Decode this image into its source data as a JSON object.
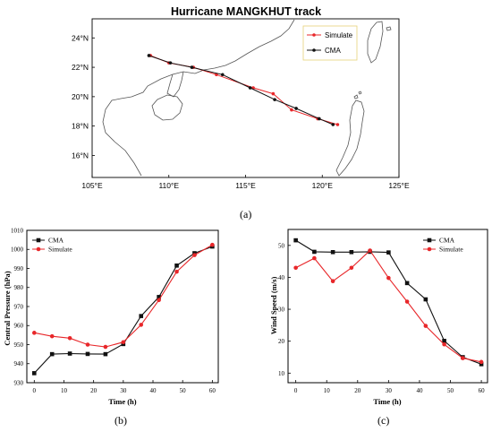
{
  "panels": {
    "a": "(a)",
    "b": "(b)",
    "c": "(c)"
  },
  "colors": {
    "cma": "#111111",
    "simulate": "#e8272a",
    "legend_border": "#e6d278",
    "coast": "#555555"
  },
  "chart_data": [
    {
      "type": "line",
      "title": "Hurricane MANGKHUT track",
      "xlabel": "",
      "ylabel": "",
      "xlim": [
        105,
        125
      ],
      "ylim": [
        14.5,
        25.3
      ],
      "x_ticks": [
        105,
        110,
        115,
        120,
        125
      ],
      "x_tick_labels": [
        "105°E",
        "110°E",
        "115°E",
        "120°E",
        "125°E"
      ],
      "y_ticks": [
        16,
        18,
        20,
        22,
        24
      ],
      "y_tick_labels": [
        "16°N",
        "18°N",
        "20°N",
        "22°N",
        "24°N"
      ],
      "grid": false,
      "legend": "top-right",
      "series": [
        {
          "name": "Simulate",
          "points": [
            [
              121.0,
              18.1
            ],
            [
              119.7,
              18.5
            ],
            [
              118.0,
              19.1
            ],
            [
              116.8,
              20.2
            ],
            [
              115.5,
              20.6
            ],
            [
              113.1,
              21.5
            ],
            [
              111.6,
              22.0
            ],
            [
              110.0,
              22.3
            ],
            [
              108.8,
              22.8
            ]
          ]
        },
        {
          "name": "CMA",
          "points": [
            [
              120.7,
              18.1
            ],
            [
              119.8,
              18.5
            ],
            [
              118.3,
              19.2
            ],
            [
              116.9,
              19.8
            ],
            [
              115.3,
              20.6
            ],
            [
              113.5,
              21.5
            ],
            [
              111.5,
              22.0
            ],
            [
              110.1,
              22.3
            ],
            [
              108.7,
              22.8
            ]
          ]
        }
      ]
    },
    {
      "type": "line",
      "title": "",
      "xlabel": "Time (h)",
      "ylabel": "Central Pressure (hPa)",
      "xlim": [
        -2.5,
        62
      ],
      "ylim": [
        930,
        1010
      ],
      "x_ticks": [
        0,
        10,
        20,
        30,
        40,
        50,
        60
      ],
      "y_ticks": [
        930,
        940,
        950,
        960,
        970,
        980,
        990,
        1000,
        1010
      ],
      "grid": false,
      "legend": "top-left",
      "x": [
        0,
        6,
        12,
        18,
        24,
        30,
        36,
        42,
        48,
        54,
        60
      ],
      "series": [
        {
          "name": "CMA",
          "values": [
            935,
            945,
            945.3,
            945.1,
            945,
            950.3,
            965,
            975,
            991.5,
            998,
            1001.5
          ]
        },
        {
          "name": "Simulate",
          "values": [
            956.2,
            954.4,
            953.4,
            950,
            948.8,
            951.3,
            960.4,
            973.4,
            988.3,
            997,
            1002.4
          ]
        }
      ]
    },
    {
      "type": "line",
      "title": "",
      "xlabel": "Time (h)",
      "ylabel": "Wind Speed (m/s)",
      "xlim": [
        -2.5,
        62
      ],
      "ylim": [
        7,
        55
      ],
      "x_ticks": [
        0,
        10,
        20,
        30,
        40,
        50,
        60
      ],
      "y_ticks": [
        10,
        20,
        30,
        40,
        50
      ],
      "grid": false,
      "legend": "top-right",
      "x": [
        0,
        6,
        12,
        18,
        24,
        30,
        36,
        42,
        48,
        54,
        60
      ],
      "series": [
        {
          "name": "CMA",
          "values": [
            51.6,
            48,
            47.9,
            47.9,
            48,
            47.8,
            38.2,
            33.1,
            20.1,
            15,
            12.8
          ]
        },
        {
          "name": "Simulate",
          "values": [
            43,
            46,
            38.8,
            43,
            48.4,
            39.8,
            32.4,
            24.8,
            19,
            14.7,
            13.5
          ]
        }
      ]
    }
  ]
}
